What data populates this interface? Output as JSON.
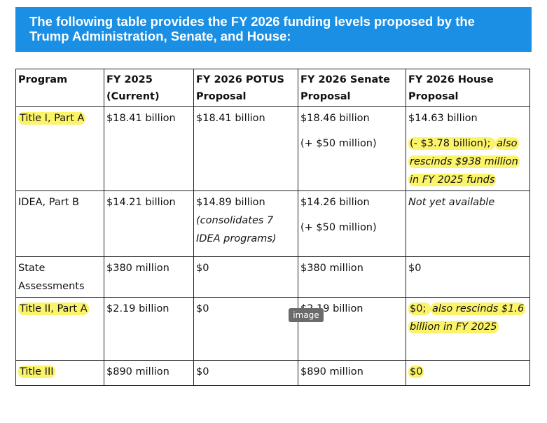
{
  "banner": {
    "text": "The following table provides the FY 2026 funding levels proposed by the Trump Administration, Senate, and House:"
  },
  "table": {
    "headers": {
      "program": "Program",
      "fy2025": "FY 2025 (Current)",
      "potus": "FY 2026 POTUS Proposal",
      "senate": "FY 2026 Senate Proposal",
      "house": "FY 2026 House Proposal"
    },
    "rows": [
      {
        "program": "Title I, Part A",
        "fy2025": "$18.41 billion",
        "potus": "$18.41 billion",
        "senate": "$18.46 billion",
        "senate_note": "(+ $50 million)",
        "house": "$14.63 billion",
        "house_note_a": "(- $3.78 billion); ",
        "house_note_b": "also rescinds $938 million in FY 2025 funds"
      },
      {
        "program": "IDEA, Part B",
        "fy2025": "$14.21 billion",
        "potus": "$14.89 billion",
        "potus_note": "(consolidates 7 IDEA programs)",
        "senate": "$14.26 billion",
        "senate_note": "(+ $50 million)",
        "house": "Not yet available"
      },
      {
        "program": "State Assessments",
        "fy2025": "$380 million",
        "potus": "$0",
        "senate": "$380 million",
        "house": "$0"
      },
      {
        "program": "Title II, Part A",
        "fy2025": "$2.19 billion",
        "potus": "$0",
        "senate": "$2.19 billion",
        "house_a": "$0; ",
        "house_b": "also rescinds $1.6 billion in FY 2025"
      },
      {
        "program": "Title III",
        "fy2025": "$890 million",
        "potus": "$0",
        "senate": "$890 million",
        "house": "$0"
      }
    ]
  },
  "overlay": {
    "image_badge": "image"
  },
  "colors": {
    "banner_bg": "#1a8fe3",
    "highlight": "#fbf36a"
  }
}
